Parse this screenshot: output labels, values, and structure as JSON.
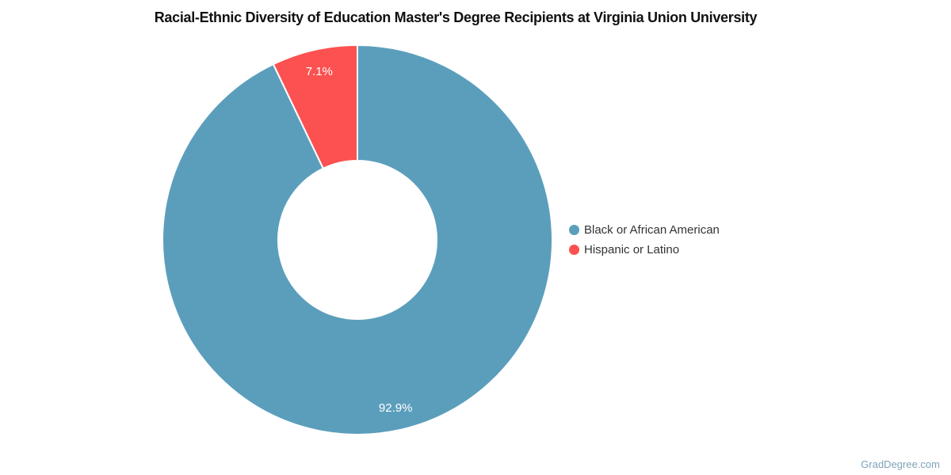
{
  "chart_data": {
    "type": "pie",
    "donut": true,
    "title": "Racial-Ethnic Diversity of Education Master's Degree Recipients at Virginia Union University",
    "series": [
      {
        "name": "Black or African American",
        "value": 92.9,
        "label": "92.9%",
        "color": "#5B9EBC"
      },
      {
        "name": "Hispanic or Latino",
        "value": 7.1,
        "label": "7.1%",
        "color": "#FC5151"
      }
    ],
    "start_angle_deg": 0,
    "direction": "clockwise",
    "inner_radius_ratio": 0.41,
    "labels_position": "inside",
    "label_color": "#FFFFFF",
    "slice_border_color": "#FFFFFF",
    "legend_position": "right",
    "background": "#FFFFFF"
  },
  "footer": {
    "watermark": "GradDegree.com",
    "watermark_color": "#7FA3BA"
  }
}
